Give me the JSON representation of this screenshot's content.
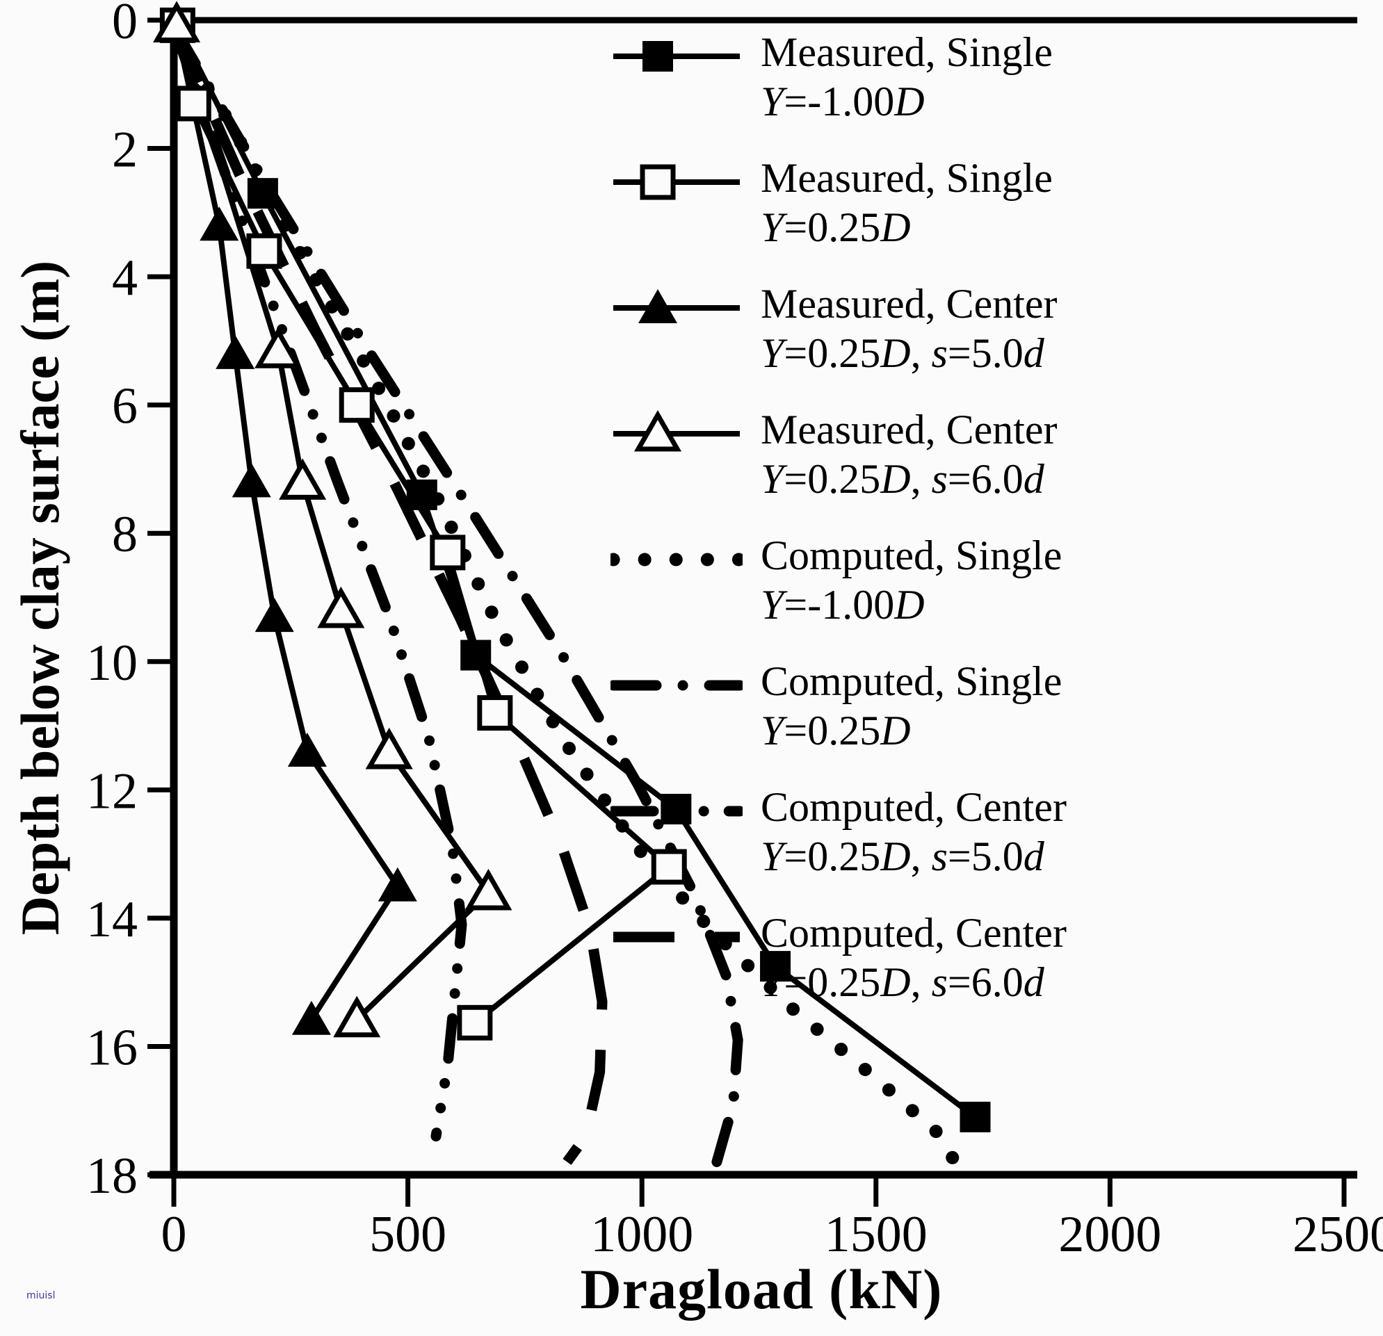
{
  "watermark": "miuisl",
  "axes": {
    "x": {
      "label": "Dragload (kN)",
      "min": 0,
      "max": 2500,
      "ticks": [
        0,
        500,
        1000,
        1500,
        2000,
        2500
      ]
    },
    "y": {
      "label": "Depth below clay surface (m)",
      "min": 0,
      "max": 18,
      "ticks": [
        0,
        2,
        4,
        6,
        8,
        10,
        12,
        14,
        16,
        18
      ]
    }
  },
  "legend": [
    {
      "name": "Measured, Single",
      "params": "Y=-1.00D",
      "params_html": "<i>Y</i>=-1.00<i>D</i>",
      "marker": "square-filled",
      "dash": "solid"
    },
    {
      "name": "Measured, Single",
      "params": "Y=0.25D",
      "params_html": "<i>Y</i>=0.25<i>D</i>",
      "marker": "square-open",
      "dash": "solid"
    },
    {
      "name": "Measured, Center",
      "params": "Y=0.25D, s=5.0d",
      "params_html": "<i>Y</i>=0.25<i>D</i>, <i>s</i>=5.0<i>d</i>",
      "marker": "triangle-filled",
      "dash": "solid"
    },
    {
      "name": "Measured, Center",
      "params": "Y=0.25D, s=6.0d",
      "params_html": "<i>Y</i>=0.25<i>D</i>, <i>s</i>=6.0<i>d</i>",
      "marker": "triangle-open",
      "dash": "solid"
    },
    {
      "name": "Computed, Single",
      "params": "Y=-1.00D",
      "params_html": "<i>Y</i>=-1.00<i>D</i>",
      "marker": null,
      "dash": "dotted"
    },
    {
      "name": "Computed, Single",
      "params": "Y=0.25D",
      "params_html": "<i>Y</i>=0.25<i>D</i>",
      "marker": null,
      "dash": "dashdot"
    },
    {
      "name": "Computed, Center",
      "params": "Y=0.25D, s=5.0d",
      "params_html": "<i>Y</i>=0.25<i>D</i>, <i>s</i>=5.0<i>d</i>",
      "marker": null,
      "dash": "dashdotdot"
    },
    {
      "name": "Computed, Center",
      "params": "Y=0.25D, s=6.0d",
      "params_html": "<i>Y</i>=0.25<i>D</i>, <i>s</i>=6.0<i>d</i>",
      "marker": null,
      "dash": "longdash"
    }
  ],
  "chart_data": {
    "type": "line",
    "title": "",
    "xlabel": "Dragload (kN)",
    "ylabel": "Depth below clay surface (m)",
    "xlim": [
      0,
      2500
    ],
    "ylim": [
      0,
      18
    ],
    "y_axis_inverted": true,
    "grid": false,
    "legend_position": "upper right",
    "point_format": "[dragload_kN, depth_m]",
    "series": [
      {
        "name": "Measured, Single Y=-1.00D",
        "marker": "square-filled",
        "dash": "solid",
        "points": [
          [
            5,
            0.05
          ],
          [
            190,
            2.7
          ],
          [
            530,
            7.4
          ],
          [
            645,
            9.9
          ],
          [
            1073,
            12.3
          ],
          [
            1285,
            14.75
          ],
          [
            1712,
            17.1
          ]
        ]
      },
      {
        "name": "Measured, Single Y=0.25D",
        "marker": "square-open",
        "dash": "solid",
        "points": [
          [
            8,
            0.08
          ],
          [
            42,
            1.3
          ],
          [
            193,
            3.6
          ],
          [
            391,
            6.0
          ],
          [
            585,
            8.3
          ],
          [
            686,
            10.8
          ],
          [
            1058,
            13.2
          ],
          [
            643,
            15.63
          ]
        ]
      },
      {
        "name": "Measured, Center Y=0.25D, s=5.0d",
        "marker": "triangle-filled",
        "dash": "solid",
        "points": [
          [
            3,
            0.05
          ],
          [
            97,
            3.2
          ],
          [
            131,
            5.2
          ],
          [
            166,
            7.2
          ],
          [
            215,
            9.3
          ],
          [
            285,
            11.4
          ],
          [
            478,
            13.5
          ],
          [
            294,
            15.58
          ]
        ]
      },
      {
        "name": "Measured, Center Y=0.25D, s=6.0d",
        "marker": "triangle-open",
        "dash": "solid",
        "points": [
          [
            6,
            0.07
          ],
          [
            223,
            5.15
          ],
          [
            275,
            7.2
          ],
          [
            357,
            9.2
          ],
          [
            460,
            11.4
          ],
          [
            672,
            13.6
          ],
          [
            391,
            15.58
          ]
        ]
      },
      {
        "name": "Computed, Single Y=-1.00D",
        "marker": null,
        "dash": "dotted",
        "points": [
          [
            0,
            0.25
          ],
          [
            120,
            1.6
          ],
          [
            260,
            3.5
          ],
          [
            420,
            5.5
          ],
          [
            560,
            7.4
          ],
          [
            690,
            9.4
          ],
          [
            830,
            11.2
          ],
          [
            990,
            12.9
          ],
          [
            1150,
            14.2
          ],
          [
            1320,
            15.4
          ],
          [
            1500,
            16.5
          ],
          [
            1640,
            17.4
          ],
          [
            1668,
            17.8
          ]
        ]
      },
      {
        "name": "Computed, Single Y=0.25D",
        "marker": null,
        "dash": "dashdot",
        "points": [
          [
            0,
            0.1
          ],
          [
            200,
            2.6
          ],
          [
            420,
            5.2
          ],
          [
            640,
            7.7
          ],
          [
            830,
            9.9
          ],
          [
            990,
            11.9
          ],
          [
            1110,
            13.6
          ],
          [
            1180,
            14.9
          ],
          [
            1205,
            15.9
          ],
          [
            1195,
            16.9
          ],
          [
            1160,
            17.8
          ]
        ]
      },
      {
        "name": "Computed, Center Y=0.25D, s=5.0d",
        "marker": null,
        "dash": "dashdotdot",
        "points": [
          [
            0,
            0.1
          ],
          [
            110,
            2.4
          ],
          [
            230,
            4.8
          ],
          [
            350,
            7.2
          ],
          [
            460,
            9.3
          ],
          [
            545,
            11.2
          ],
          [
            595,
            12.9
          ],
          [
            615,
            14.1
          ],
          [
            600,
            15.2
          ],
          [
            585,
            16.3
          ],
          [
            560,
            17.4
          ]
        ]
      },
      {
        "name": "Computed, Center Y=0.25D, s=6.0d",
        "marker": null,
        "dash": "longdash",
        "points": [
          [
            0,
            0.1
          ],
          [
            140,
            2.4
          ],
          [
            300,
            4.8
          ],
          [
            470,
            7.2
          ],
          [
            610,
            9.3
          ],
          [
            730,
            11.2
          ],
          [
            830,
            12.9
          ],
          [
            890,
            14.2
          ],
          [
            915,
            15.3
          ],
          [
            910,
            16.4
          ],
          [
            880,
            17.4
          ],
          [
            840,
            17.8
          ]
        ]
      }
    ]
  }
}
